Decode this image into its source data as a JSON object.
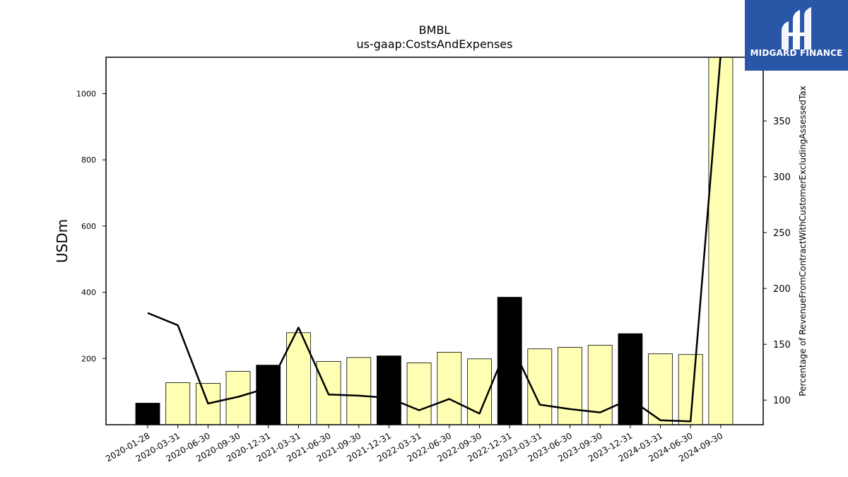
{
  "chart_data": {
    "type": "bar",
    "title": "BMBL",
    "subtitle": "us-gaap:CostsAndExpenses",
    "ylabel": "USDm",
    "y2label": "Percentage of RevenueFromContractWithCustomerExcludingAssessedTax",
    "ylim": [
      0,
      1110
    ],
    "y2lim": [
      78,
      407
    ],
    "yticks": [
      200,
      400,
      600,
      800,
      1000
    ],
    "y2ticks": [
      100,
      150,
      200,
      250,
      300,
      350
    ],
    "categories": [
      "2020-01-28",
      "2020-03-31",
      "2020-06-30",
      "2020-09-30",
      "2020-12-31",
      "2021-03-31",
      "2021-06-30",
      "2021-09-30",
      "2021-12-31",
      "2022-03-31",
      "2022-06-30",
      "2022-09-30",
      "2022-12-31",
      "2023-03-31",
      "2023-06-30",
      "2023-09-30",
      "2023-12-31",
      "2024-03-31",
      "2024-06-30",
      "2024-09-30"
    ],
    "series": [
      {
        "values": [
          65,
          127,
          125,
          161,
          180,
          278,
          191,
          203,
          208,
          187,
          219,
          199,
          385,
          229,
          234,
          240,
          275,
          214,
          212,
          1110
        ],
        "colors": [
          "#000000",
          "#ffffb3",
          "#ffffb3",
          "#ffffb3",
          "#000000",
          "#ffffb3",
          "#ffffb3",
          "#ffffb3",
          "#000000",
          "#ffffb3",
          "#ffffb3",
          "#ffffb3",
          "#000000",
          "#ffffb3",
          "#ffffb3",
          "#ffffb3",
          "#000000",
          "#ffffb3",
          "#ffffb3",
          "#ffffb3"
        ]
      },
      {
        "axis": "right",
        "type": "line",
        "color": "#000000",
        "values": [
          178,
          167,
          97,
          103,
          111,
          165,
          105,
          104,
          102,
          91,
          101,
          88,
          153,
          96,
          92,
          89,
          101,
          82,
          81,
          410
        ]
      }
    ]
  },
  "logo": {
    "text": "MIDGARD FINANCE",
    "bg": "#2a56a8"
  }
}
